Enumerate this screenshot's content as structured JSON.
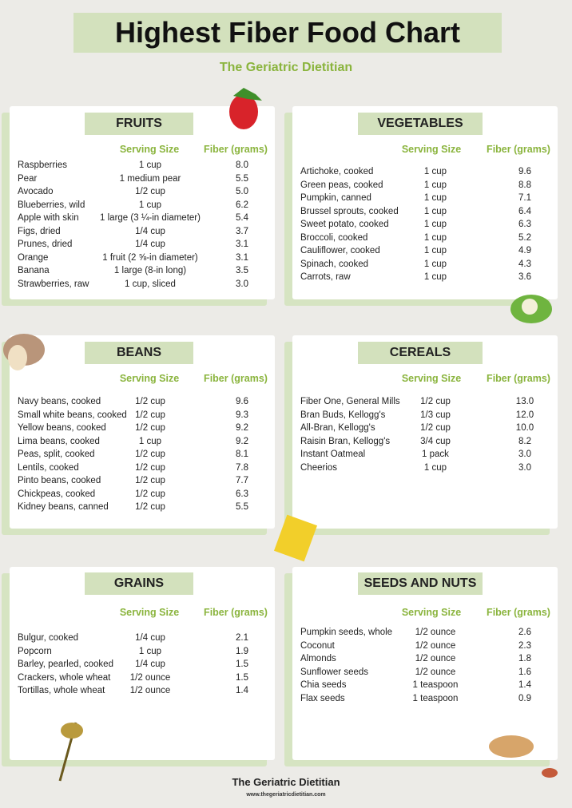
{
  "header": {
    "title": "Highest Fiber Food Chart",
    "subtitle": "The Geriatric Dietitian"
  },
  "sections": [
    {
      "title": "FRUITS",
      "columns": [
        "Serving Size",
        "Fiber (grams)"
      ],
      "rows": [
        [
          "Raspberries",
          "1 cup",
          "8.0"
        ],
        [
          "Pear",
          "1 medium pear",
          "5.5"
        ],
        [
          "Avocado",
          "1/2 cup",
          "5.0"
        ],
        [
          "Blueberries, wild",
          "1 cup",
          "6.2"
        ],
        [
          "Apple with skin",
          "1 large (3 ¼-in diameter)",
          "5.4"
        ],
        [
          "Figs, dried",
          "1/4 cup",
          "3.7"
        ],
        [
          "Prunes, dried",
          "1/4 cup",
          "3.1"
        ],
        [
          "Orange",
          "1 fruit (2 ⅝-in diameter)",
          "3.1"
        ],
        [
          "Banana",
          "1 large (8-in long)",
          "3.5"
        ],
        [
          "Strawberries, raw",
          "1 cup, sliced",
          "3.0"
        ]
      ]
    },
    {
      "title": "VEGETABLES",
      "columns": [
        "Serving Size",
        "Fiber (grams)"
      ],
      "rows": [
        [
          "Artichoke, cooked",
          "1 cup",
          "9.6"
        ],
        [
          "Green peas, cooked",
          "1 cup",
          "8.8"
        ],
        [
          "Pumpkin, canned",
          "1 cup",
          "7.1"
        ],
        [
          "Brussel sprouts, cooked",
          "1 cup",
          "6.4"
        ],
        [
          "Sweet potato, cooked",
          "1 cup",
          "6.3"
        ],
        [
          "Broccoli, cooked",
          "1 cup",
          "5.2"
        ],
        [
          "Cauliflower, cooked",
          "1 cup",
          "4.9"
        ],
        [
          "Spinach, cooked",
          "1 cup",
          "4.3"
        ],
        [
          "Carrots, raw",
          "1 cup",
          "3.6"
        ]
      ]
    },
    {
      "title": "BEANS",
      "columns": [
        "Serving Size",
        "Fiber (grams)"
      ],
      "rows": [
        [
          "Navy beans, cooked",
          "1/2 cup",
          "9.6"
        ],
        [
          "Small white beans, cooked",
          "1/2 cup",
          "9.3"
        ],
        [
          "Yellow beans, cooked",
          "1/2 cup",
          "9.2"
        ],
        [
          "Lima beans, cooked",
          "1 cup",
          "9.2"
        ],
        [
          "Peas, split, cooked",
          "1/2 cup",
          "8.1"
        ],
        [
          "Lentils, cooked",
          "1/2 cup",
          "7.8"
        ],
        [
          "Pinto beans, cooked",
          "1/2 cup",
          "7.7"
        ],
        [
          "Chickpeas, cooked",
          "1/2 cup",
          "6.3"
        ],
        [
          "Kidney beans, canned",
          "1/2 cup",
          "5.5"
        ]
      ]
    },
    {
      "title": "CEREALS",
      "columns": [
        "Serving Size",
        "Fiber (grams)"
      ],
      "rows": [
        [
          "Fiber One, General Mills",
          "1/2 cup",
          "13.0"
        ],
        [
          "Bran Buds, Kellogg's",
          "1/3 cup",
          "12.0"
        ],
        [
          "All-Bran, Kellogg's",
          "1/2 cup",
          "10.0"
        ],
        [
          "Raisin Bran, Kellogg's",
          "3/4 cup",
          "8.2"
        ],
        [
          "Instant Oatmeal",
          "1 pack",
          "3.0"
        ],
        [
          "Cheerios",
          "1 cup",
          "3.0"
        ]
      ]
    },
    {
      "title": "GRAINS",
      "columns": [
        "Serving Size",
        "Fiber (grams)"
      ],
      "rows": [
        [
          "Bulgur, cooked",
          "1/4 cup",
          "2.1"
        ],
        [
          "Popcorn",
          "1 cup",
          "1.9"
        ],
        [
          "Barley, pearled, cooked",
          "1/4 cup",
          "1.5"
        ],
        [
          "Crackers, whole wheat",
          "1/2 ounce",
          "1.5"
        ],
        [
          "Tortillas, whole wheat",
          "1/2 ounce",
          "1.4"
        ]
      ]
    },
    {
      "title": "SEEDS AND NUTS",
      "columns": [
        "Serving Size",
        "Fiber (grams)"
      ],
      "rows": [
        [
          "Pumpkin seeds, whole",
          "1/2 ounce",
          "2.6"
        ],
        [
          "Coconut",
          "1/2 ounce",
          "2.3"
        ],
        [
          "Almonds",
          "1/2 ounce",
          "1.8"
        ],
        [
          "Sunflower seeds",
          "1/2 ounce",
          "1.6"
        ],
        [
          "Chia seeds",
          "1 teaspoon",
          "1.4"
        ],
        [
          "Flax seeds",
          "1 teaspoon",
          "0.9"
        ]
      ]
    }
  ],
  "footer": {
    "name": "The Geriatric Dietitian",
    "url": "www.thegeriatricdietitian.com"
  }
}
